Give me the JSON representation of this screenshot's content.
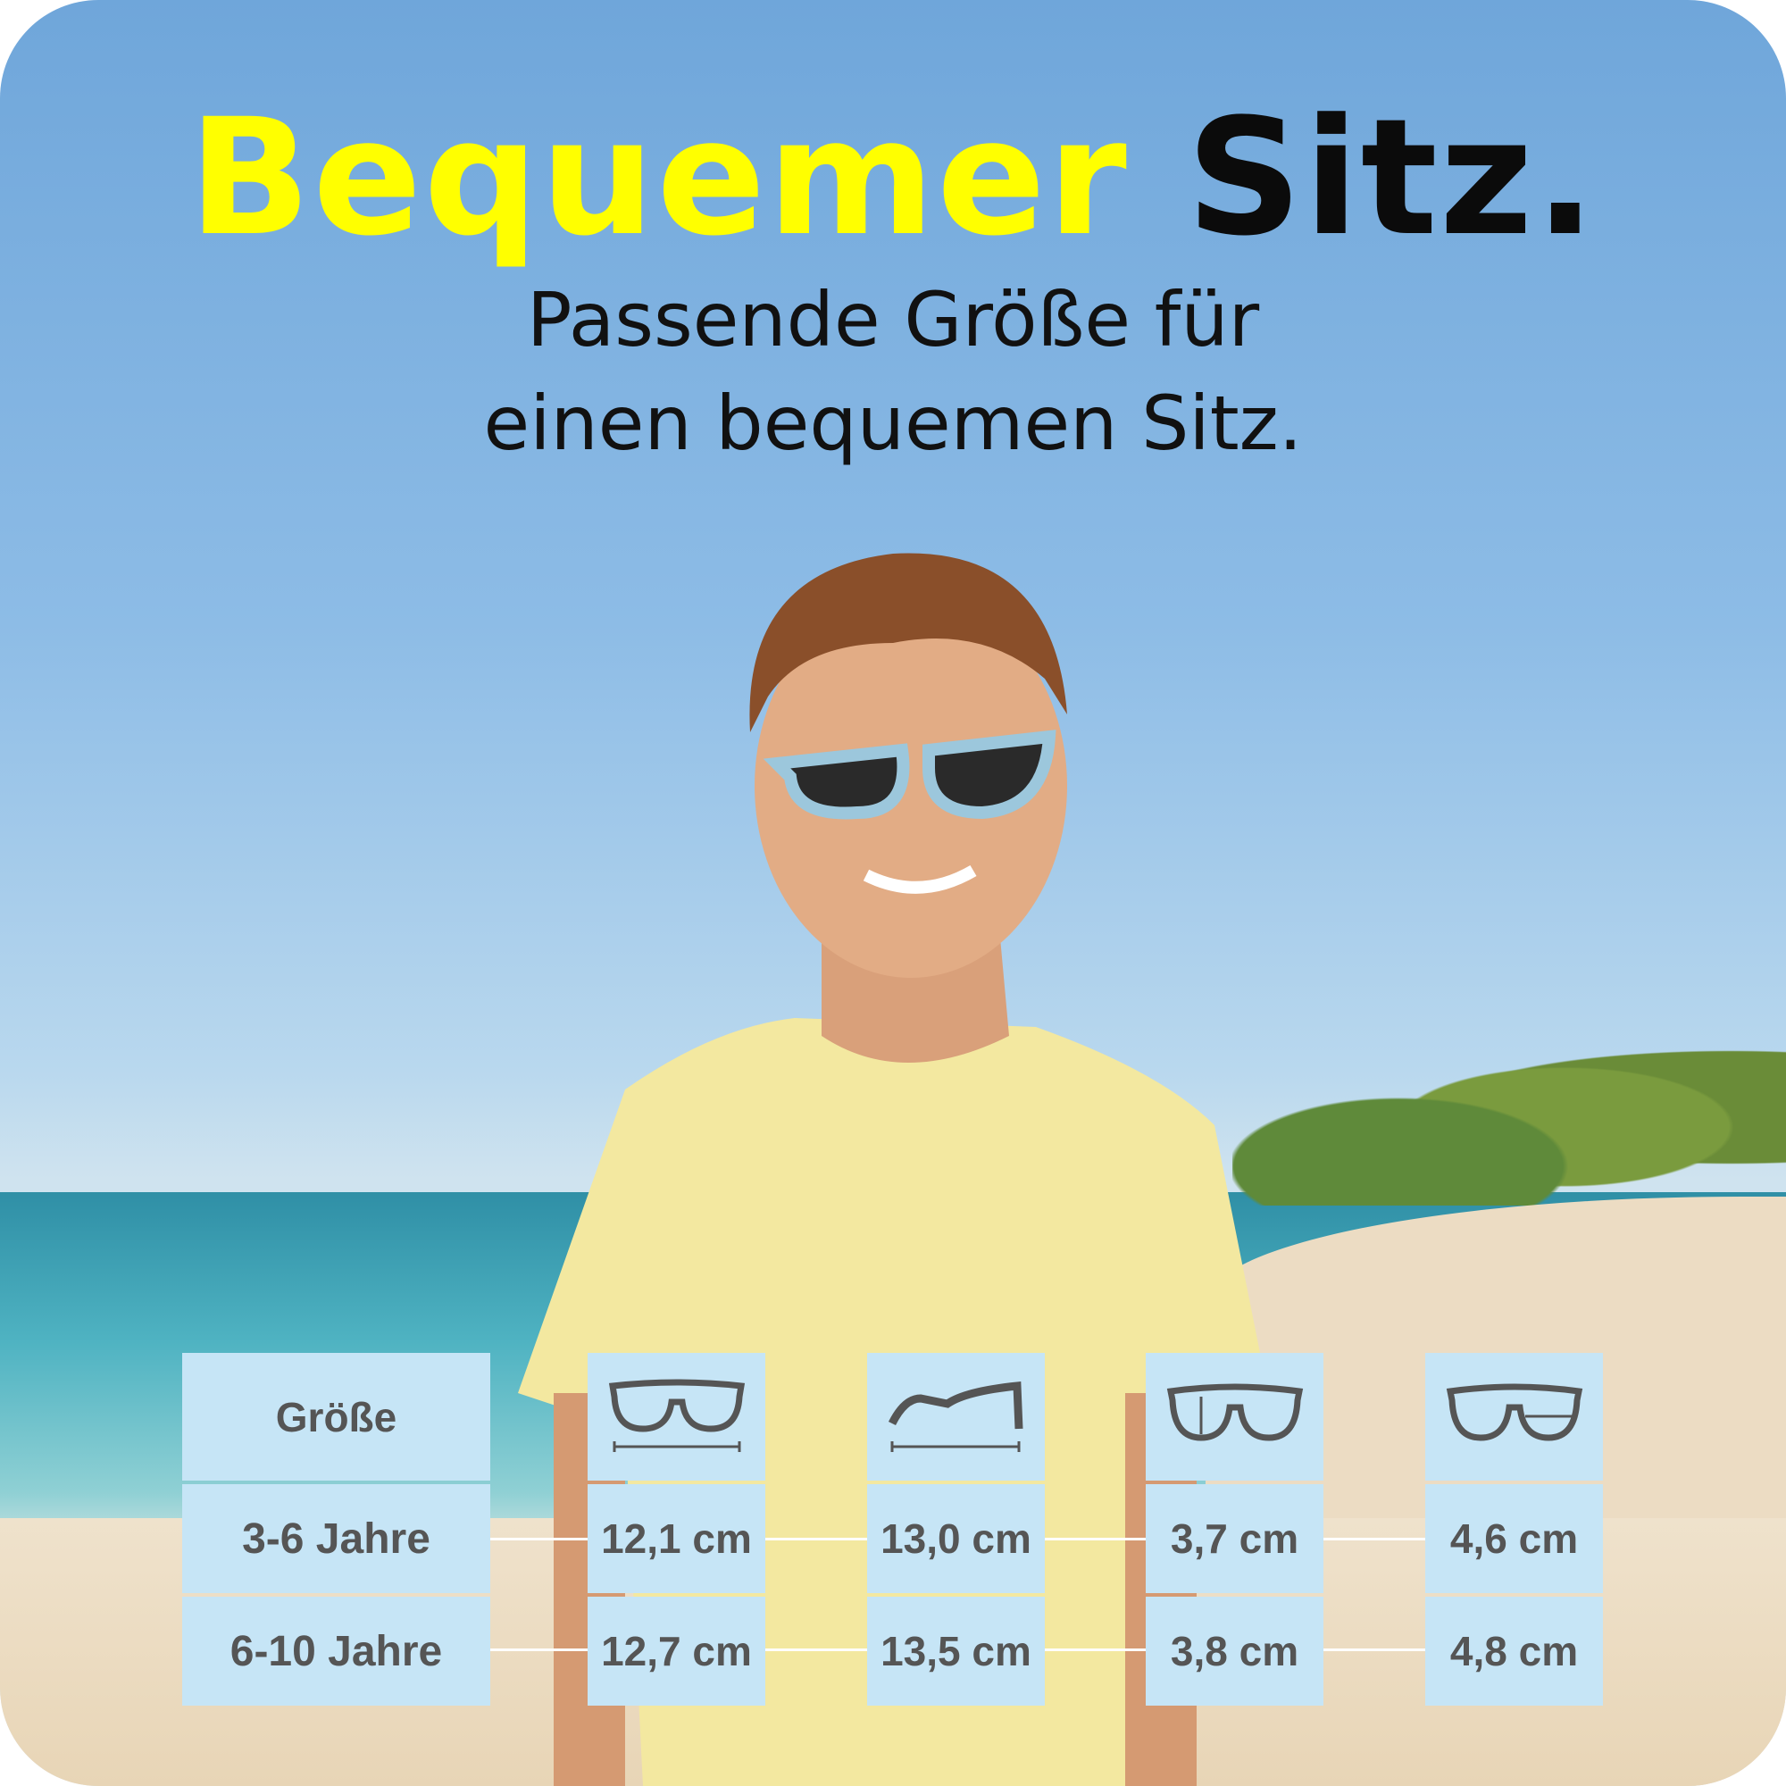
{
  "headline": {
    "highlight": "Bequemer",
    "rest": "Sitz.",
    "highlight_color": "#ffff00"
  },
  "subtitle": {
    "line1": "Passende Größe für",
    "line2": "einen bequemen Sitz."
  },
  "size_table": {
    "header_label": "Größe",
    "column_icons": [
      "glasses-total-width-icon",
      "temple-length-icon",
      "lens-height-icon",
      "lens-width-icon"
    ],
    "rows": [
      {
        "label": "3-6 Jahre",
        "values": [
          "12,1 cm",
          "13,0 cm",
          "3,7 cm",
          "4,6 cm"
        ]
      },
      {
        "label": "6-10 Jahre",
        "values": [
          "12,7 cm",
          "13,5 cm",
          "3,8 cm",
          "4,8 cm"
        ]
      }
    ],
    "cell_color": "#c6e5f6"
  }
}
